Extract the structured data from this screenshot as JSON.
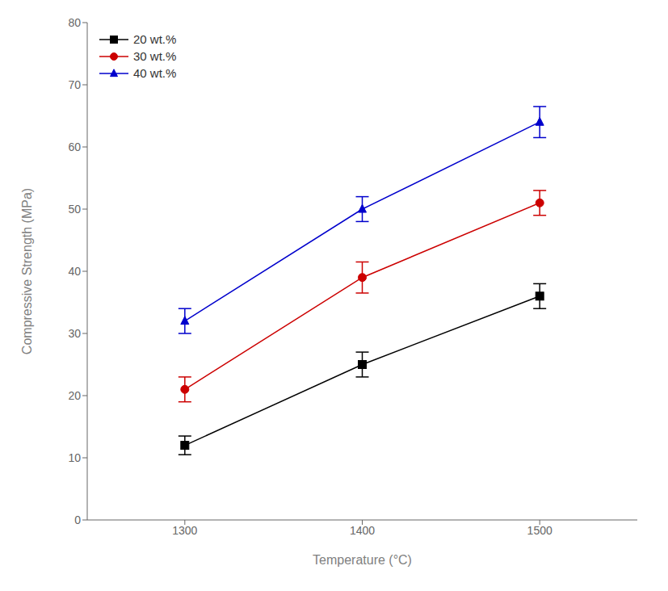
{
  "chart_data": {
    "type": "line",
    "x": [
      1300,
      1400,
      1500
    ],
    "series": [
      {
        "name": "20 wt.%",
        "color": "#000000",
        "marker": "square",
        "values": [
          12,
          25,
          36
        ],
        "yerr": [
          1.5,
          2.0,
          2.0
        ]
      },
      {
        "name": "30 wt.%",
        "color": "#cc0000",
        "marker": "circle",
        "values": [
          21,
          39,
          51
        ],
        "yerr": [
          2.0,
          2.5,
          2.0
        ]
      },
      {
        "name": "40 wt.%",
        "color": "#0000cc",
        "marker": "triangle",
        "values": [
          32,
          50,
          64
        ],
        "yerr": [
          2.0,
          2.0,
          2.5
        ]
      }
    ],
    "xlabel": "Temperature (°C)",
    "ylabel": "Compressive Strength (MPa)",
    "xlim": [
      1245,
      1555
    ],
    "xticks": [
      1300,
      1400,
      1500
    ],
    "ylim": [
      0,
      80
    ],
    "yticks": [
      0,
      10,
      20,
      30,
      40,
      50,
      60,
      70,
      80
    ],
    "legend": "upper left",
    "grid": false
  }
}
